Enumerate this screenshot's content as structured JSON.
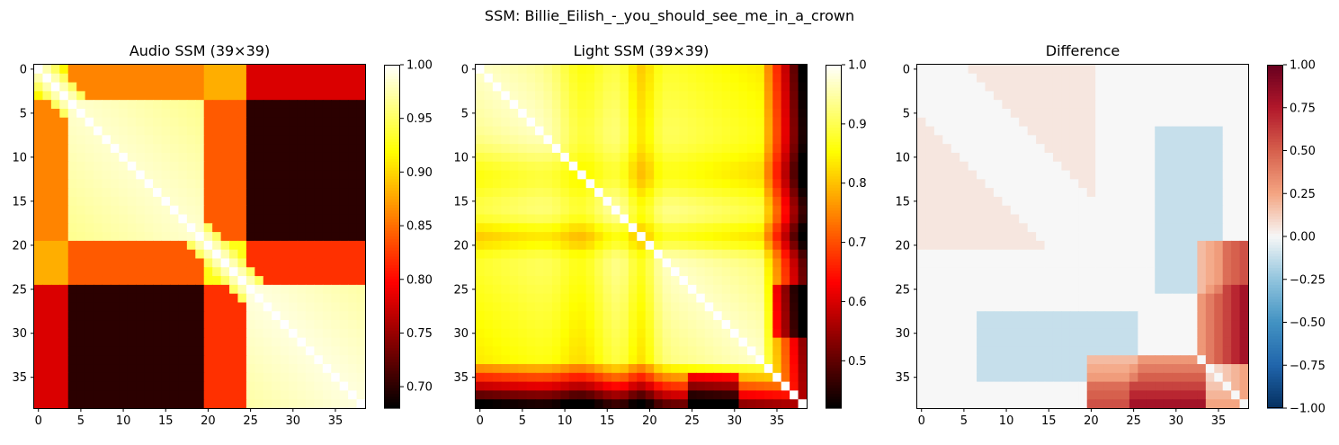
{
  "figure_title": "SSM: Billie_Eilish_-_you_should_see_me_in_a_crown",
  "chart_data": [
    {
      "type": "heatmap",
      "title": "Audio SSM (39×39)",
      "size": 39,
      "colormap": "hot",
      "vmin": 0.68,
      "vmax": 1.0,
      "colorbar_ticks": [
        "0.70",
        "0.75",
        "0.80",
        "0.85",
        "0.90",
        "0.95",
        "1.00"
      ],
      "x_ticks": [
        "0",
        "5",
        "10",
        "15",
        "20",
        "25",
        "30",
        "35"
      ],
      "y_ticks": [
        "0",
        "5",
        "10",
        "15",
        "20",
        "25",
        "30",
        "35"
      ],
      "segments": [
        {
          "start": 0,
          "end": 3,
          "self": 0.92
        },
        {
          "start": 4,
          "end": 19,
          "self": 0.985
        },
        {
          "start": 20,
          "end": 24,
          "self": 0.93
        },
        {
          "start": 25,
          "end": 38,
          "self": 0.99
        }
      ],
      "segment_cross": [
        [
          0.92,
          0.86,
          0.88,
          0.78
        ],
        [
          0.86,
          0.985,
          0.84,
          0.7
        ],
        [
          0.88,
          0.84,
          0.93,
          0.82
        ],
        [
          0.78,
          0.7,
          0.82,
          0.99
        ]
      ]
    },
    {
      "type": "heatmap",
      "title": "Light SSM (39×39)",
      "size": 39,
      "colormap": "hot",
      "vmin": 0.42,
      "vmax": 1.0,
      "colorbar_ticks": [
        "0.5",
        "0.6",
        "0.7",
        "0.8",
        "0.9",
        "1.0"
      ],
      "x_ticks": [
        "0",
        "5",
        "10",
        "15",
        "20",
        "25",
        "30",
        "35"
      ],
      "y_ticks": [
        "0",
        "5",
        "10",
        "15",
        "20",
        "25",
        "30",
        "35"
      ]
    },
    {
      "type": "heatmap",
      "title": "Difference",
      "size": 39,
      "colormap": "RdBu_r",
      "vmin": -1.0,
      "vmax": 1.0,
      "colorbar_ticks": [
        "−1.00",
        "−0.75",
        "−0.50",
        "−0.25",
        "0.00",
        "0.25",
        "0.50",
        "0.75",
        "1.00"
      ],
      "x_ticks": [
        "0",
        "5",
        "10",
        "15",
        "20",
        "25",
        "30",
        "35"
      ],
      "y_ticks": [
        "0",
        "5",
        "10",
        "15",
        "20",
        "25",
        "30",
        "35"
      ]
    }
  ]
}
